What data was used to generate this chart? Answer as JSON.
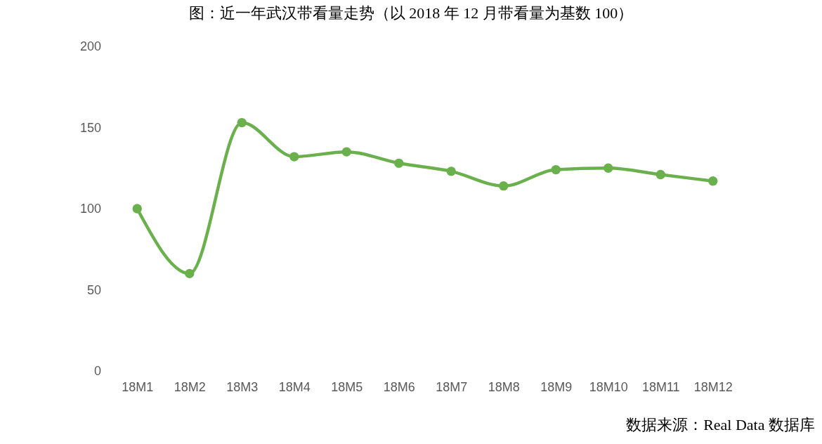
{
  "chart_data": {
    "type": "line",
    "title": "图：近一年武汉带看量走势（以 2018 年 12 月带看量为基数 100）",
    "categories": [
      "18M1",
      "18M2",
      "18M3",
      "18M4",
      "18M5",
      "18M6",
      "18M7",
      "18M8",
      "18M9",
      "18M10",
      "18M11",
      "18M12"
    ],
    "series": [
      {
        "color": "#6ab04c",
        "values": [
          100,
          60,
          153,
          132,
          135,
          128,
          123,
          114,
          124,
          125,
          121,
          117
        ]
      }
    ],
    "ylim": [
      0,
      200
    ],
    "yticks": [
      0,
      50,
      100,
      150,
      200
    ],
    "grid": false,
    "marker": "circle",
    "line_style": "solid",
    "annotations": [
      "数据来源：Real Data 数据库"
    ]
  }
}
